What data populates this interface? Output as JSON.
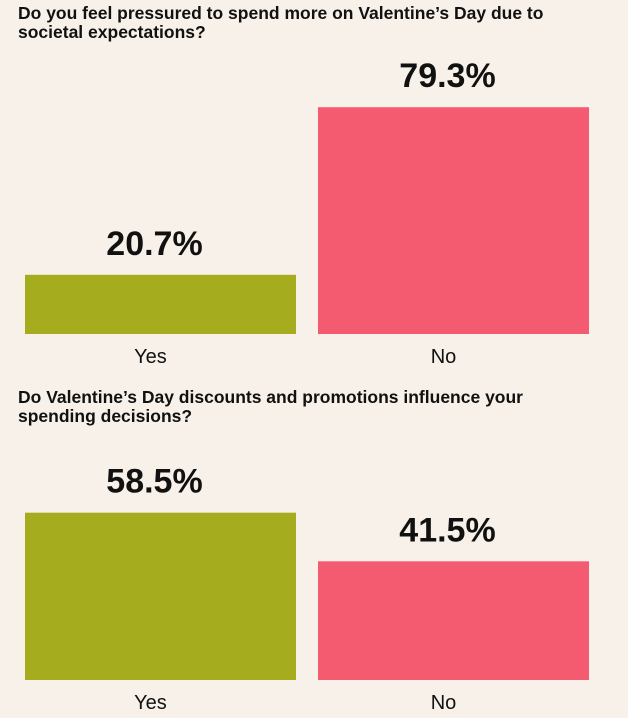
{
  "chart_data": [
    {
      "type": "bar",
      "title": "Do you feel pressured to spend more on Valentine’s Day due to societal expectations?",
      "categories": [
        "Yes",
        "No"
      ],
      "values": [
        20.7,
        79.3
      ],
      "value_labels": [
        "20.7%",
        "79.3%"
      ],
      "unit": "%",
      "ylim": [
        0,
        100
      ],
      "grid": false,
      "bar_colors": [
        "#a5ac1d",
        "#f45a70"
      ]
    },
    {
      "type": "bar",
      "title": "Do Valentine’s Day discounts and promotions influence your spending decisions?",
      "categories": [
        "Yes",
        "No"
      ],
      "values": [
        58.5,
        41.5
      ],
      "value_labels": [
        "58.5%",
        "41.5%"
      ],
      "unit": "%",
      "ylim": [
        0,
        100
      ],
      "grid": false,
      "bar_colors": [
        "#a5ac1d",
        "#f45a70"
      ]
    }
  ],
  "colors": {
    "background": "#f8f1e9",
    "text": "#111111"
  }
}
